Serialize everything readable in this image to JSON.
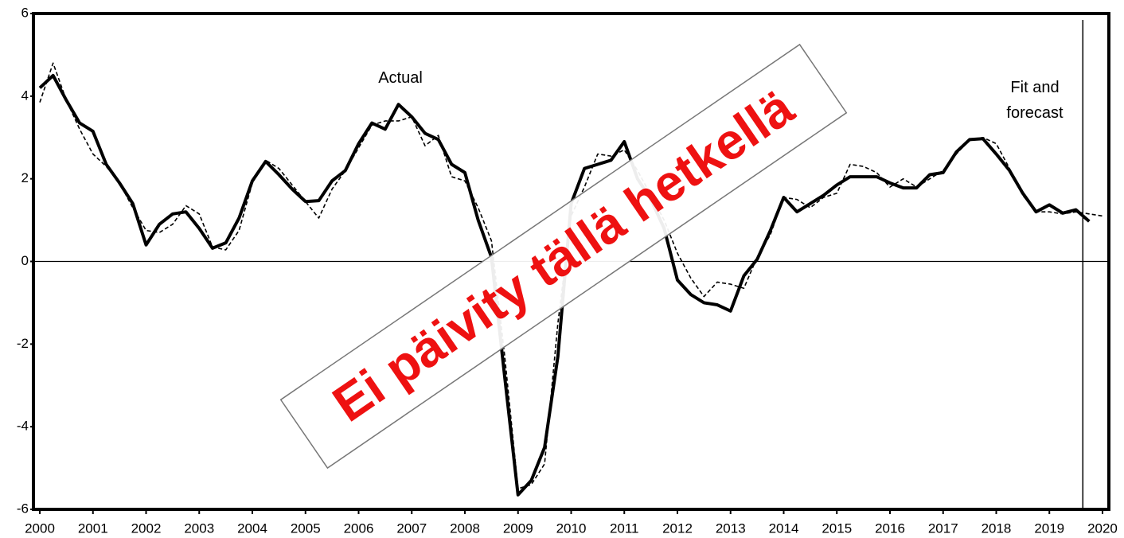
{
  "chart_data": {
    "type": "line",
    "x": [
      2000,
      2000.25,
      2000.5,
      2000.75,
      2001,
      2001.25,
      2001.5,
      2001.75,
      2002,
      2002.25,
      2002.5,
      2002.75,
      2003,
      2003.25,
      2003.5,
      2003.75,
      2004,
      2004.25,
      2004.5,
      2004.75,
      2005,
      2005.25,
      2005.5,
      2005.75,
      2006,
      2006.25,
      2006.5,
      2006.75,
      2007,
      2007.25,
      2007.5,
      2007.75,
      2008,
      2008.25,
      2008.5,
      2008.75,
      2009,
      2009.25,
      2009.5,
      2009.75,
      2010,
      2010.25,
      2010.5,
      2010.75,
      2011,
      2011.25,
      2011.5,
      2011.75,
      2012,
      2012.25,
      2012.5,
      2012.75,
      2013,
      2013.25,
      2013.5,
      2013.75,
      2014,
      2014.25,
      2014.5,
      2014.75,
      2015,
      2015.25,
      2015.5,
      2015.75,
      2016,
      2016.25,
      2016.5,
      2016.75,
      2017,
      2017.25,
      2017.5,
      2017.75,
      2018,
      2018.25,
      2018.5,
      2018.75,
      2019,
      2019.25,
      2019.5,
      2019.75,
      2020
    ],
    "series": [
      {
        "color": "#000000",
        "style": "solid",
        "values": [
          4.2,
          4.5,
          3.9,
          3.35,
          3.15,
          2.35,
          1.9,
          1.4,
          0.4,
          0.9,
          1.15,
          1.2,
          0.8,
          0.32,
          0.45,
          1.05,
          1.95,
          2.42,
          2.1,
          1.75,
          1.45,
          1.47,
          1.95,
          2.2,
          2.85,
          3.35,
          3.2,
          3.8,
          3.5,
          3.1,
          2.95,
          2.35,
          2.15,
          1.0,
          0.1,
          -2.8,
          -5.65,
          -5.3,
          -4.5,
          -2.3,
          1.4,
          2.25,
          2.35,
          2.45,
          2.9,
          2.0,
          1.5,
          0.8,
          -0.45,
          -0.8,
          -1.0,
          -1.05,
          -1.2,
          -0.35,
          0.05,
          0.75,
          1.55,
          1.2,
          1.4,
          1.6,
          1.85,
          2.05,
          2.05,
          2.05,
          1.9,
          1.78,
          1.78,
          2.1,
          2.15,
          2.65,
          2.95,
          2.97,
          2.6,
          2.2,
          1.65,
          1.2,
          1.37,
          1.17,
          1.25,
          0.97,
          null
        ]
      },
      {
        "color": "#000000",
        "style": "dashed",
        "values": [
          3.85,
          4.8,
          3.9,
          3.2,
          2.6,
          2.3,
          1.9,
          1.3,
          0.75,
          0.7,
          0.9,
          1.35,
          1.15,
          0.35,
          0.28,
          0.75,
          1.9,
          2.45,
          2.25,
          1.85,
          1.45,
          1.05,
          1.75,
          2.2,
          2.75,
          3.3,
          3.4,
          3.4,
          3.5,
          2.8,
          3.05,
          2.05,
          1.95,
          1.3,
          0.5,
          -2.3,
          -5.5,
          -5.4,
          -4.9,
          -1.5,
          1.1,
          1.8,
          2.6,
          2.55,
          2.7,
          2.2,
          1.6,
          1.0,
          0.2,
          -0.4,
          -0.85,
          -0.5,
          -0.55,
          -0.65,
          0.1,
          0.65,
          1.55,
          1.5,
          1.3,
          1.55,
          1.65,
          2.35,
          2.3,
          2.15,
          1.8,
          2.0,
          1.8,
          2.0,
          2.2,
          2.6,
          2.95,
          3.0,
          2.85,
          2.25,
          1.6,
          1.2,
          1.2,
          1.15,
          1.2,
          1.15,
          1.1
        ]
      }
    ],
    "annotations": [
      "Actual",
      "Fit and forecast"
    ],
    "stamp": "Ei päivity tällä hetkellä",
    "xlim": [
      1999.88,
      2020.12
    ],
    "xticks": [
      2000,
      2001,
      2002,
      2003,
      2004,
      2005,
      2006,
      2007,
      2008,
      2009,
      2010,
      2011,
      2012,
      2013,
      2014,
      2015,
      2016,
      2017,
      2018,
      2019,
      2020
    ],
    "ylim": [
      -6,
      6
    ],
    "yticks": [
      -6,
      -4,
      -2,
      0,
      2,
      4,
      6
    ],
    "hline": 0,
    "vline": 2019.63
  }
}
